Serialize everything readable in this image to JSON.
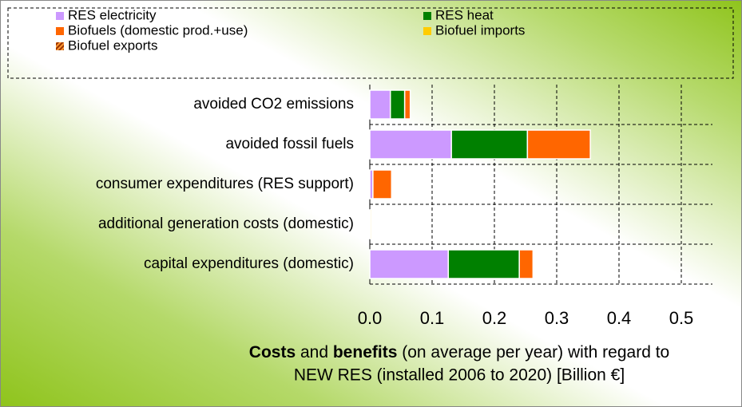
{
  "chart_data": {
    "type": "stacked-barh",
    "categories": [
      "avoided CO2 emissions",
      "avoided fossil fuels",
      "consumer expenditures (RES support)",
      "additional generation costs (domestic)",
      "capital expenditures (domestic)"
    ],
    "series": [
      {
        "name": "RES electricity",
        "color": "#cc99ff",
        "values": [
          0.033,
          0.131,
          0.005,
          0,
          0.126
        ]
      },
      {
        "name": "RES heat",
        "color": "#008000",
        "values": [
          0.023,
          0.122,
          0,
          0,
          0.114
        ]
      },
      {
        "name": "Biofuels (domestic prod.+use)",
        "color": "#ff6600",
        "values": [
          0.009,
          0.101,
          0.03,
          0.001,
          0.022
        ]
      },
      {
        "name": "Biofuel imports",
        "color": "#ffcc00",
        "values": [
          0,
          0,
          0,
          0.002,
          0
        ]
      },
      {
        "name": "Biofuel exports",
        "color": "#993300",
        "hatch": true,
        "values": [
          0,
          0,
          0,
          0,
          0
        ]
      }
    ],
    "xlim": [
      0,
      0.55
    ],
    "xticks": [
      {
        "value": 0,
        "label": "0.0"
      },
      0.1,
      0.2,
      0.3,
      0.4,
      0.5
    ],
    "grid": true,
    "xlabel": [
      "Costs",
      " and ",
      "benefits",
      " (on average per year) with regard to",
      "NEW RES (installed 2006 to 2020) [Billion €]"
    ]
  }
}
